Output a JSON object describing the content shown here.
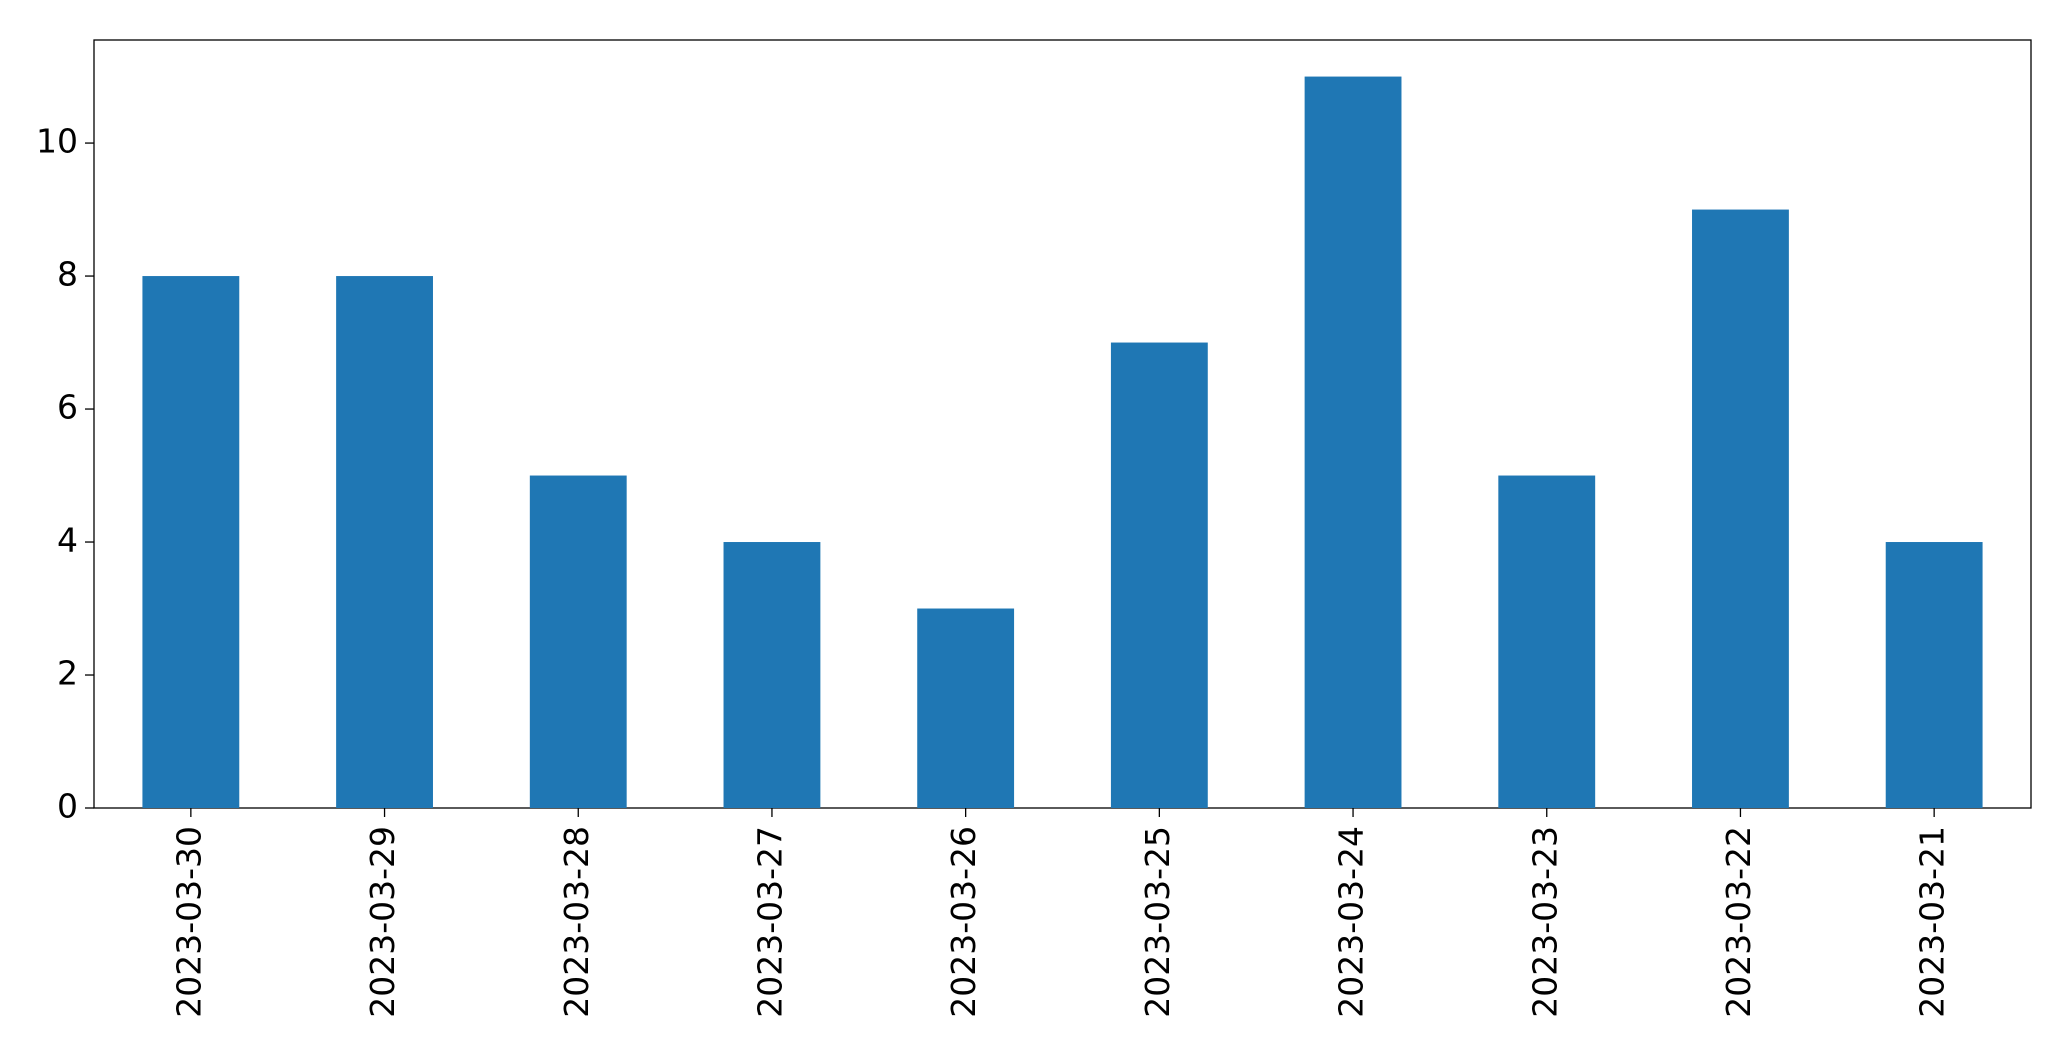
{
  "chart_data": {
    "type": "bar",
    "categories": [
      "2023-03-30",
      "2023-03-29",
      "2023-03-28",
      "2023-03-27",
      "2023-03-26",
      "2023-03-25",
      "2023-03-24",
      "2023-03-23",
      "2023-03-22",
      "2023-03-21"
    ],
    "values": [
      8,
      8,
      5,
      4,
      3,
      7,
      11,
      5,
      9,
      4
    ],
    "color": "#1f77b4",
    "ylim": [
      0,
      11.55
    ],
    "yticks": [
      0,
      2,
      4,
      6,
      8,
      10
    ],
    "grid": false
  }
}
